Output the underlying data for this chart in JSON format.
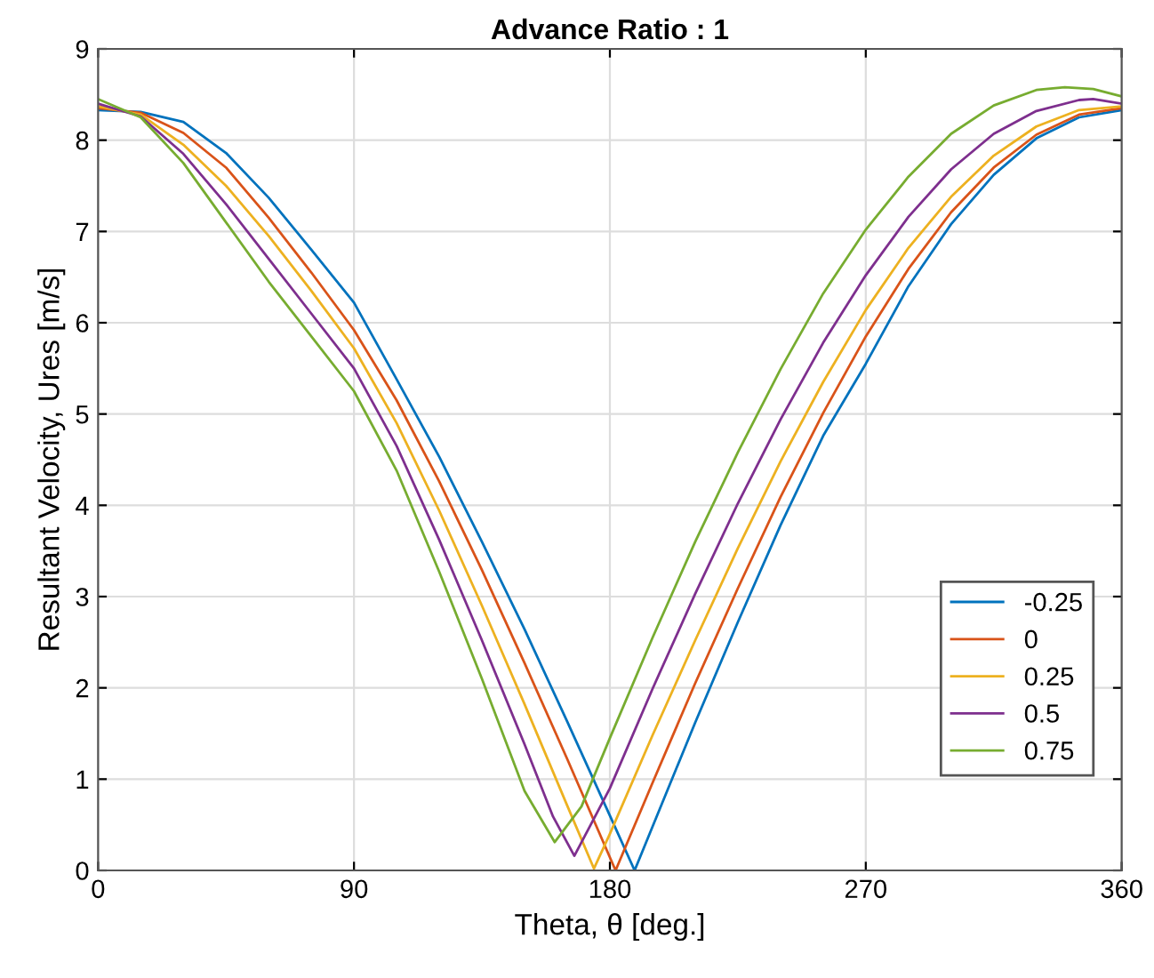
{
  "chart_data": {
    "type": "line",
    "title": "Advance Ratio : 1",
    "xlabel": "Theta, θ [deg.]",
    "ylabel": "Resultant Velocity, Ures [m/s]",
    "xlim": [
      0,
      360
    ],
    "ylim": [
      0,
      9
    ],
    "xticks": [
      0,
      90,
      180,
      270,
      360
    ],
    "yticks": [
      0,
      1,
      2,
      3,
      4,
      5,
      6,
      7,
      8,
      9
    ],
    "grid": true,
    "legend": "bottom right",
    "line_style": "solid",
    "marker": "none",
    "series": [
      {
        "name": "-0.25",
        "color": "#0072bd",
        "x": [
          0,
          15,
          30,
          45,
          60,
          75,
          90,
          105,
          120,
          135,
          150,
          165,
          180,
          188.7,
          195,
          210,
          225,
          240,
          255,
          270,
          285,
          300,
          315,
          330,
          345,
          360
        ],
        "values": [
          8.33,
          8.31,
          8.2,
          7.86,
          7.37,
          6.8,
          6.22,
          5.38,
          4.53,
          3.6,
          2.64,
          1.63,
          0.6,
          0,
          0.48,
          1.62,
          2.72,
          3.78,
          4.76,
          5.55,
          6.4,
          7.08,
          7.62,
          8.02,
          8.25,
          8.33
        ]
      },
      {
        "name": "0",
        "color": "#d95319",
        "x": [
          0,
          15,
          30,
          45,
          60,
          75,
          90,
          105,
          120,
          135,
          150,
          165,
          182,
          195,
          210,
          225,
          240,
          255,
          270,
          285,
          300,
          315,
          330,
          345,
          360
        ],
        "values": [
          8.35,
          8.3,
          8.08,
          7.7,
          7.15,
          6.55,
          5.92,
          5.15,
          4.26,
          3.29,
          2.27,
          1.22,
          0,
          0.96,
          2.05,
          3.09,
          4.09,
          5.01,
          5.85,
          6.59,
          7.21,
          7.7,
          8.06,
          8.28,
          8.35
        ]
      },
      {
        "name": "0.25",
        "color": "#edb120",
        "x": [
          0,
          15,
          30,
          45,
          60,
          75,
          90,
          105,
          120,
          135,
          150,
          165,
          174.4,
          180,
          195,
          210,
          225,
          240,
          255,
          270,
          285,
          300,
          315,
          330,
          345,
          360
        ],
        "values": [
          8.37,
          8.28,
          7.95,
          7.5,
          6.95,
          6.35,
          5.72,
          4.9,
          3.94,
          2.9,
          1.82,
          0.71,
          0.02,
          0.4,
          1.48,
          2.52,
          3.53,
          4.48,
          5.35,
          6.14,
          6.82,
          7.38,
          7.83,
          8.15,
          8.33,
          8.37
        ]
      },
      {
        "name": "0.5",
        "color": "#7e2f8e",
        "x": [
          0,
          15,
          30,
          45,
          60,
          75,
          90,
          105,
          120,
          135,
          150,
          160,
          167.5,
          180,
          195,
          210,
          225,
          240,
          255,
          270,
          285,
          300,
          315,
          330,
          345,
          350,
          360
        ],
        "values": [
          8.4,
          8.26,
          7.85,
          7.3,
          6.7,
          6.1,
          5.5,
          4.65,
          3.62,
          2.52,
          1.38,
          0.59,
          0.16,
          0.9,
          1.99,
          3.03,
          4.02,
          4.94,
          5.78,
          6.52,
          7.16,
          7.68,
          8.07,
          8.32,
          8.44,
          8.45,
          8.4
        ]
      },
      {
        "name": "0.75",
        "color": "#77ac30",
        "x": [
          0,
          15,
          30,
          45,
          60,
          75,
          90,
          105,
          120,
          135,
          150,
          160.6,
          170,
          180,
          195,
          210,
          225,
          240,
          255,
          270,
          285,
          300,
          315,
          330,
          340,
          350,
          360
        ],
        "values": [
          8.45,
          8.25,
          7.75,
          7.1,
          6.45,
          5.85,
          5.25,
          4.38,
          3.27,
          2.1,
          0.87,
          0.31,
          0.7,
          1.45,
          2.55,
          3.6,
          4.58,
          5.49,
          6.32,
          7.02,
          7.6,
          8.07,
          8.38,
          8.55,
          8.58,
          8.56,
          8.48
        ]
      }
    ]
  }
}
